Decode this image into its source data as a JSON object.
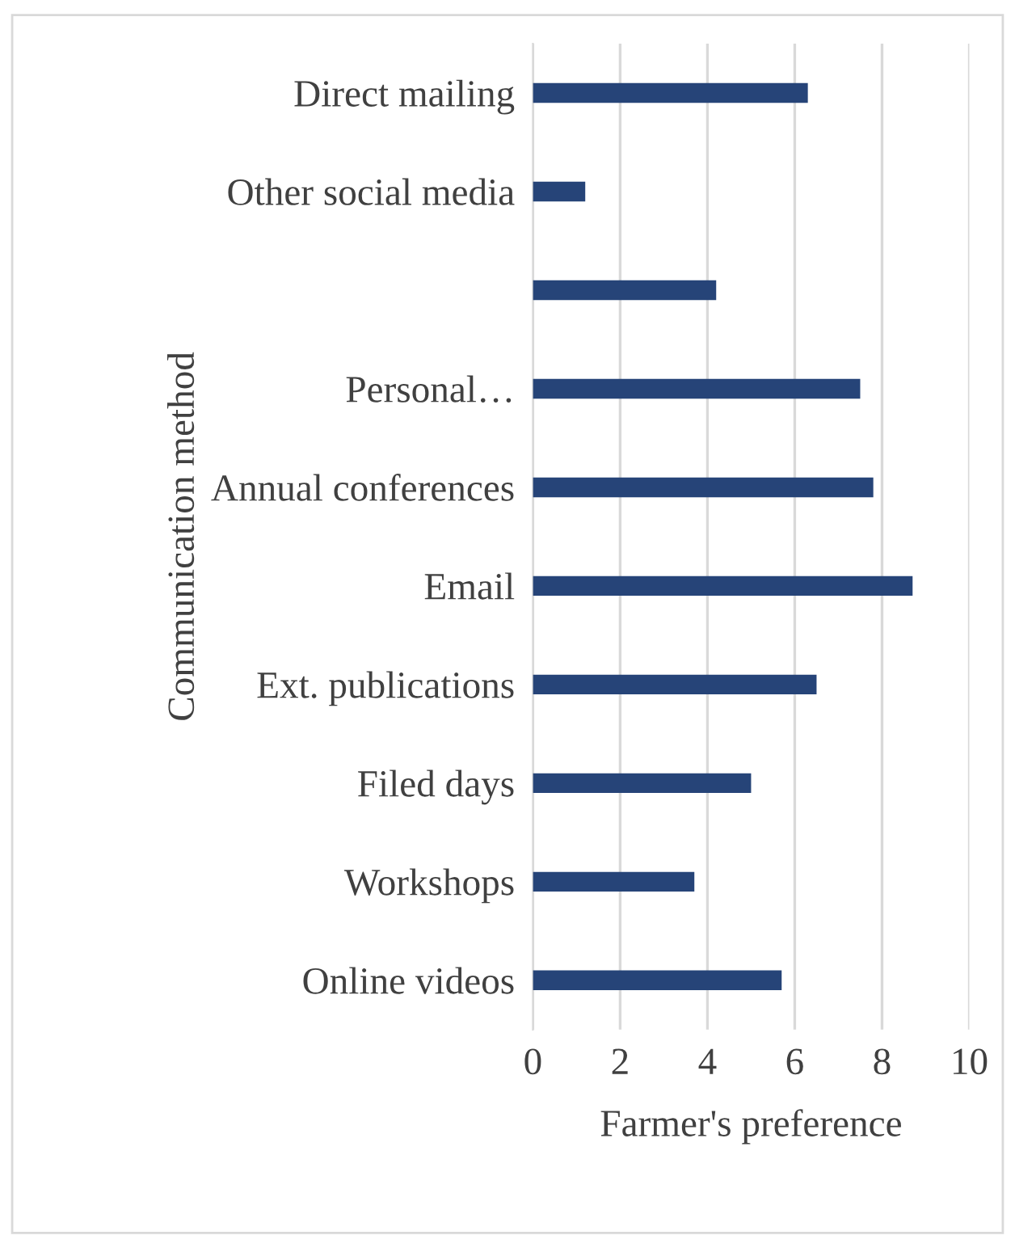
{
  "chart_data": {
    "type": "bar",
    "orientation": "horizontal",
    "xlabel": "Farmer's preference",
    "ylabel": "Communication method",
    "categories": [
      "Direct mailing",
      "Other social media",
      null,
      "Personal…",
      "Annual conferences",
      "Email",
      "Ext. publications",
      "Filed days",
      "Workshops",
      "Online videos"
    ],
    "values": [
      6.3,
      1.2,
      4.2,
      7.5,
      7.8,
      8.7,
      6.5,
      5.0,
      3.7,
      5.7
    ],
    "color": "#264478",
    "xlim": [
      0,
      10
    ],
    "xticks": [
      0,
      2,
      4,
      6,
      8,
      10
    ],
    "grid": "x",
    "legend": false
  }
}
